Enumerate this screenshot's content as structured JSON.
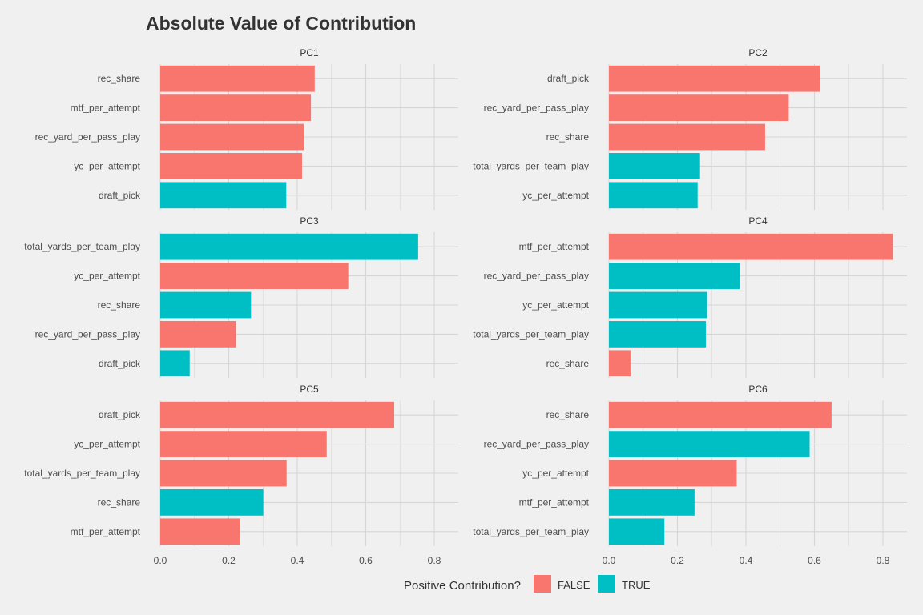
{
  "chart_data": {
    "type": "bar",
    "orientation": "horizontal",
    "title": "Absolute Value of Contribution",
    "xlim": [
      0,
      0.87
    ],
    "x_ticks": [
      "0.0",
      "0.2",
      "0.4",
      "0.6",
      "0.8"
    ],
    "x_tick_values": [
      0,
      0.2,
      0.4,
      0.6,
      0.8
    ],
    "grid": true,
    "legend": {
      "title": "Positive Contribution?",
      "placement": "bottom",
      "entries": [
        {
          "label": "FALSE",
          "color": "#F8766D"
        },
        {
          "label": "TRUE",
          "color": "#00BFC4"
        }
      ]
    },
    "panels": [
      {
        "name": "PC1",
        "bars": [
          {
            "label": "rec_share",
            "value": 0.451,
            "positive": "FALSE"
          },
          {
            "label": "mtf_per_attempt",
            "value": 0.44,
            "positive": "FALSE"
          },
          {
            "label": "rec_yard_per_pass_play",
            "value": 0.419,
            "positive": "FALSE"
          },
          {
            "label": "yc_per_attempt",
            "value": 0.414,
            "positive": "FALSE"
          },
          {
            "label": "draft_pick",
            "value": 0.368,
            "positive": "TRUE"
          }
        ]
      },
      {
        "name": "PC2",
        "bars": [
          {
            "label": "draft_pick",
            "value": 0.616,
            "positive": "FALSE"
          },
          {
            "label": "rec_yard_per_pass_play",
            "value": 0.525,
            "positive": "FALSE"
          },
          {
            "label": "rec_share",
            "value": 0.456,
            "positive": "FALSE"
          },
          {
            "label": "total_yards_per_team_play",
            "value": 0.266,
            "positive": "TRUE"
          },
          {
            "label": "yc_per_attempt",
            "value": 0.259,
            "positive": "TRUE"
          }
        ]
      },
      {
        "name": "PC3",
        "bars": [
          {
            "label": "total_yards_per_team_play",
            "value": 0.753,
            "positive": "TRUE"
          },
          {
            "label": "yc_per_attempt",
            "value": 0.549,
            "positive": "FALSE"
          },
          {
            "label": "rec_share",
            "value": 0.265,
            "positive": "TRUE"
          },
          {
            "label": "rec_yard_per_pass_play",
            "value": 0.221,
            "positive": "FALSE"
          },
          {
            "label": "draft_pick",
            "value": 0.086,
            "positive": "TRUE"
          }
        ]
      },
      {
        "name": "PC4",
        "bars": [
          {
            "label": "mtf_per_attempt",
            "value": 0.829,
            "positive": "FALSE"
          },
          {
            "label": "rec_yard_per_pass_play",
            "value": 0.382,
            "positive": "TRUE"
          },
          {
            "label": "yc_per_attempt",
            "value": 0.287,
            "positive": "TRUE"
          },
          {
            "label": "total_yards_per_team_play",
            "value": 0.283,
            "positive": "TRUE"
          },
          {
            "label": "rec_share",
            "value": 0.063,
            "positive": "FALSE"
          }
        ]
      },
      {
        "name": "PC5",
        "bars": [
          {
            "label": "draft_pick",
            "value": 0.683,
            "positive": "FALSE"
          },
          {
            "label": "yc_per_attempt",
            "value": 0.486,
            "positive": "FALSE"
          },
          {
            "label": "total_yards_per_team_play",
            "value": 0.369,
            "positive": "FALSE"
          },
          {
            "label": "rec_share",
            "value": 0.301,
            "positive": "TRUE"
          },
          {
            "label": "mtf_per_attempt",
            "value": 0.233,
            "positive": "FALSE"
          }
        ]
      },
      {
        "name": "PC6",
        "bars": [
          {
            "label": "rec_share",
            "value": 0.65,
            "positive": "FALSE"
          },
          {
            "label": "rec_yard_per_pass_play",
            "value": 0.586,
            "positive": "TRUE"
          },
          {
            "label": "yc_per_attempt",
            "value": 0.373,
            "positive": "FALSE"
          },
          {
            "label": "mtf_per_attempt",
            "value": 0.25,
            "positive": "TRUE"
          },
          {
            "label": "total_yards_per_team_play",
            "value": 0.162,
            "positive": "TRUE"
          }
        ]
      }
    ]
  }
}
